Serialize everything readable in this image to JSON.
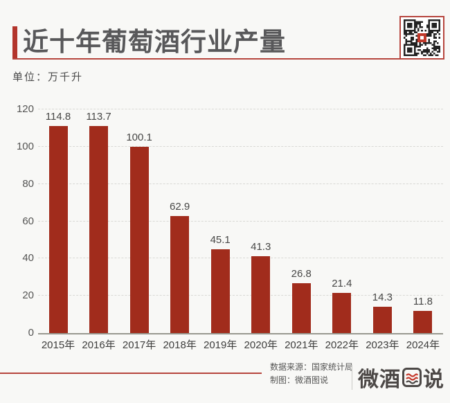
{
  "header": {
    "title": "近十年葡萄酒行业产量",
    "unit_label": "单位：万千升"
  },
  "chart_data": {
    "type": "bar",
    "title": "近十年葡萄酒行业产量",
    "unit": "万千升",
    "categories": [
      "2015年",
      "2016年",
      "2017年",
      "2018年",
      "2019年",
      "2020年",
      "2021年",
      "2022年",
      "2023年",
      "2024年"
    ],
    "values": [
      114.8,
      113.7,
      100.1,
      62.9,
      45.1,
      41.3,
      26.8,
      21.4,
      14.3,
      11.8
    ],
    "ylim": [
      0,
      120
    ],
    "yticks": [
      0,
      20,
      40,
      60,
      80,
      100,
      120
    ],
    "grid": "horizontal-dashed",
    "legend": "none",
    "value_labels": true
  },
  "footer": {
    "source": "数据来源：国家统计局",
    "credit": "制图：微酒图说",
    "logo_text": "微酒图说",
    "logo_prefix": "微酒",
    "logo_suffix": "说"
  },
  "colors": {
    "background": "#f8f8f6",
    "bar": "#a12c1c",
    "accent_red": "#b3352c",
    "title_text": "#58585a"
  }
}
